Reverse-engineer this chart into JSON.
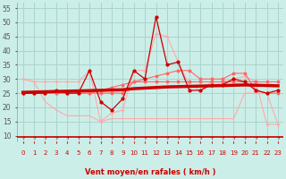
{
  "xlabel": "Vent moyen/en rafales ( km/h )",
  "bg_color": "#cceee8",
  "grid_color": "#aad4cc",
  "x_ticks": [
    0,
    1,
    2,
    3,
    4,
    5,
    6,
    7,
    8,
    9,
    10,
    11,
    12,
    13,
    14,
    15,
    16,
    17,
    18,
    19,
    20,
    21,
    22,
    23
  ],
  "y_ticks": [
    10,
    15,
    20,
    25,
    30,
    35,
    40,
    45,
    50,
    55
  ],
  "ylim": [
    8,
    57
  ],
  "xlim": [
    -0.5,
    23.5
  ],
  "color_dark": "#cc0000",
  "color_mid": "#ff6666",
  "color_light": "#ffaaaa",
  "series_wind_mean": [
    25,
    25,
    25,
    26,
    25,
    25,
    33,
    22,
    19,
    23,
    33,
    30,
    52,
    35,
    36,
    26,
    26,
    28,
    28,
    30,
    29,
    26,
    25,
    26
  ],
  "series_wind_gust": [
    30,
    29,
    29,
    29,
    29,
    29,
    33,
    15,
    18,
    19,
    33,
    33,
    46,
    45,
    36,
    28,
    26,
    29,
    29,
    30,
    31,
    29,
    14,
    14
  ],
  "series_flat": [
    25,
    25,
    25,
    25,
    25,
    25,
    25,
    25,
    25,
    25,
    29,
    29,
    29,
    29,
    29,
    29,
    29,
    29,
    29,
    29,
    29,
    29,
    29,
    29
  ],
  "series_medium": [
    25,
    25,
    25,
    25,
    25,
    25,
    25,
    26,
    27,
    28,
    29,
    30,
    31,
    32,
    33,
    33,
    30,
    30,
    30,
    32,
    32,
    26,
    25,
    25
  ],
  "series_trend": [
    25.3,
    25.4,
    25.5,
    25.6,
    25.7,
    25.8,
    25.9,
    26.0,
    26.1,
    26.2,
    26.6,
    26.8,
    27.0,
    27.2,
    27.3,
    27.4,
    27.5,
    27.6,
    27.7,
    27.8,
    27.9,
    27.8,
    27.7,
    27.6
  ],
  "series_low": [
    30,
    29,
    22,
    19,
    17,
    17,
    17,
    15,
    16,
    16,
    16,
    16,
    16,
    16,
    16,
    16,
    16,
    16,
    16,
    16,
    25,
    25,
    25,
    14
  ]
}
